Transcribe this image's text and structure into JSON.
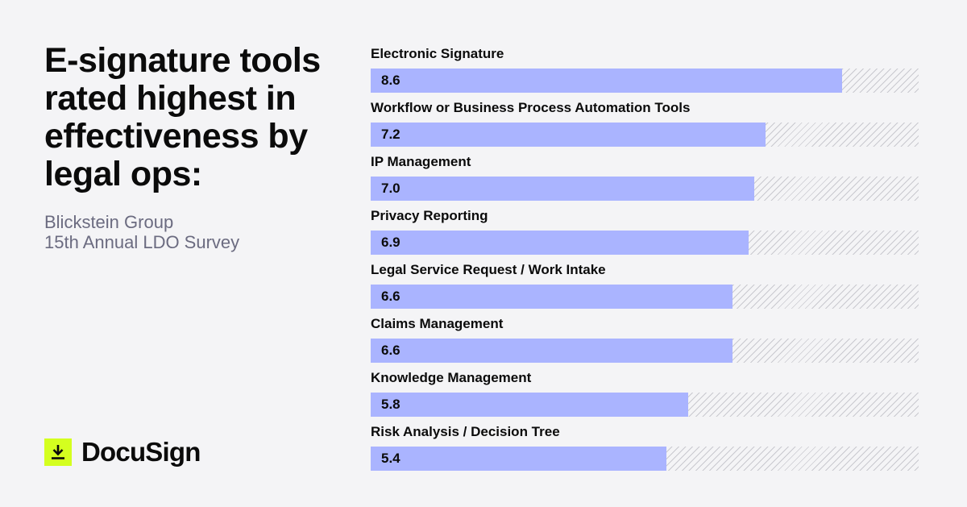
{
  "headline": "E-signature tools rated highest in effectiveness by legal ops:",
  "source": {
    "line1": "Blickstein Group",
    "line2": "15th Annual LDO Survey"
  },
  "logo": {
    "text": "DocuSign",
    "icon": "download-arrow-icon",
    "color": "#d4ff1f"
  },
  "colors": {
    "bar": "#aab4ff",
    "background": "#f4f4f6",
    "hatch": "#c9c9cf"
  },
  "chart_data": {
    "type": "bar",
    "orientation": "horizontal",
    "categories": [
      "Electronic Signature",
      "Workflow or Business Process Automation Tools",
      "IP Management",
      "Privacy Reporting",
      "Legal Service Request / Work Intake",
      "Claims Management",
      "Knowledge Management",
      "Risk Analysis / Decision Tree"
    ],
    "values": [
      8.6,
      7.2,
      7.0,
      6.9,
      6.6,
      6.6,
      5.8,
      5.4
    ],
    "value_labels": [
      "8.6",
      "7.2",
      "7.0",
      "6.9",
      "6.6",
      "6.6",
      "5.8",
      "5.4"
    ],
    "xlim": [
      0,
      10
    ],
    "grid": false,
    "legend": "none"
  }
}
